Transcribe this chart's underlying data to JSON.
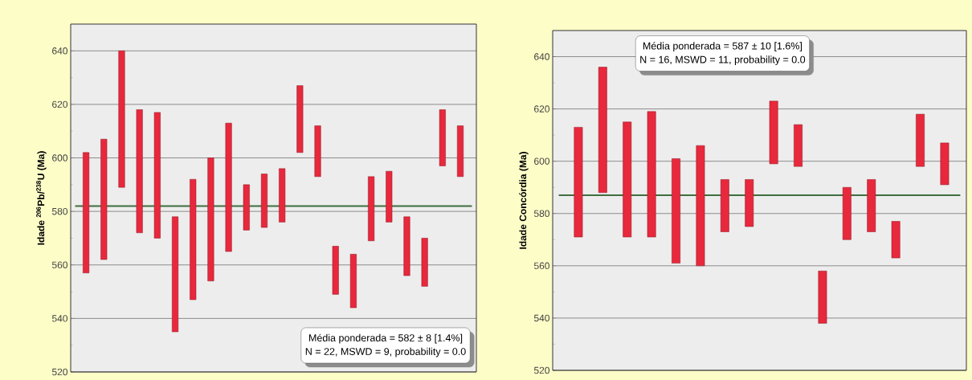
{
  "chart_data": [
    {
      "type": "bar",
      "ylabel": "Idade $^{206}$Pb/$^{238}$U (Ma)",
      "categories": [
        null,
        null,
        null,
        null,
        null,
        null,
        null,
        null,
        null,
        null,
        null,
        null,
        null,
        null,
        null,
        null,
        null,
        null,
        null,
        null,
        null,
        null
      ],
      "base": [
        557,
        562,
        589,
        572,
        570,
        535,
        547,
        554,
        565,
        573,
        574,
        576,
        602,
        593,
        549,
        544,
        569,
        576,
        556,
        552,
        597,
        593
      ],
      "values": [
        45,
        45,
        51,
        46,
        47,
        43,
        45,
        46,
        48,
        17,
        20,
        20,
        25,
        19,
        18,
        20,
        24,
        19,
        22,
        18,
        21,
        19
      ],
      "color": "#e8283c",
      "ylim": [
        520,
        650
      ],
      "yticks": [
        520,
        540,
        560,
        580,
        600,
        620,
        640
      ],
      "grid": "y",
      "ref_lines": [
        {
          "axis": "y",
          "value": 582,
          "color": "#3f6f3f"
        }
      ],
      "annotations": [
        "Média ponderada = 582 ± 8  [1.4%]",
        "N = 22, MSWD = 9, probability = 0.0"
      ]
    },
    {
      "type": "bar",
      "ylabel": "Idade Concórdia (Ma)",
      "categories": [
        null,
        null,
        null,
        null,
        null,
        null,
        null,
        null,
        null,
        null,
        null,
        null,
        null,
        null,
        null,
        null
      ],
      "base": [
        571,
        588,
        571,
        571,
        561,
        560,
        573,
        575,
        599,
        598,
        538,
        570,
        573,
        563,
        598,
        591
      ],
      "values": [
        42,
        48,
        44,
        48,
        40,
        46,
        20,
        18,
        24,
        16,
        20,
        20,
        20,
        14,
        20,
        16
      ],
      "color": "#e8283c",
      "ylim": [
        520,
        650
      ],
      "yticks": [
        520,
        540,
        560,
        580,
        600,
        620,
        640
      ],
      "grid": "y",
      "ref_lines": [
        {
          "axis": "y",
          "value": 587,
          "color": "#3f6f3f"
        }
      ],
      "annotations": [
        "Média ponderada = 587 ± 10  [1.6%]",
        "N = 16, MSWD = 11, probability = 0.0"
      ]
    }
  ]
}
